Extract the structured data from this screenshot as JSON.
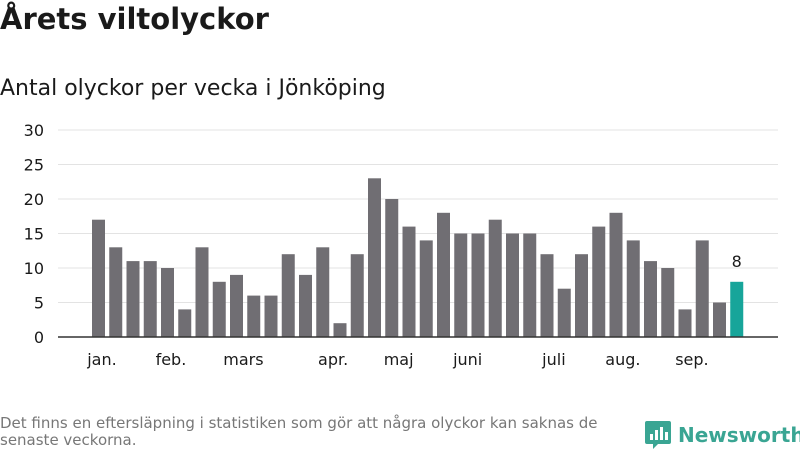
{
  "header": {
    "title": "Årets viltolyckor",
    "subtitle": "Antal olyckor per vecka i Jönköping"
  },
  "footer": {
    "note": "Det finns en eftersläpning i statistiken som gör att några olyckor kan saknas de senaste veckorna.",
    "brand": "Newsworthy"
  },
  "colors": {
    "bar": "#706e73",
    "highlight": "#17a59a",
    "brand": "#3aa593"
  },
  "chart_data": {
    "type": "bar",
    "title": "",
    "xlabel": "",
    "ylabel": "",
    "ylim": [
      0,
      30
    ],
    "yticks": [
      0,
      5,
      10,
      15,
      20,
      25,
      30
    ],
    "grid": true,
    "values": [
      17,
      13,
      11,
      11,
      10,
      4,
      13,
      8,
      9,
      6,
      6,
      12,
      9,
      13,
      2,
      12,
      23,
      20,
      16,
      14,
      18,
      15,
      15,
      17,
      15,
      15,
      12,
      7,
      12,
      16,
      18,
      14,
      11,
      10,
      4,
      14,
      5,
      8
    ],
    "highlight_index": 37,
    "highlight_label": "8",
    "month_labels": [
      {
        "label": "jan.",
        "bar_index": 0.2
      },
      {
        "label": "feb.",
        "bar_index": 4.2
      },
      {
        "label": "mars",
        "bar_index": 8.4
      },
      {
        "label": "apr.",
        "bar_index": 13.6
      },
      {
        "label": "maj",
        "bar_index": 17.4
      },
      {
        "label": "juni",
        "bar_index": 21.4
      },
      {
        "label": "juli",
        "bar_index": 26.4
      },
      {
        "label": "aug.",
        "bar_index": 30.4
      },
      {
        "label": "sep.",
        "bar_index": 34.4
      }
    ]
  }
}
